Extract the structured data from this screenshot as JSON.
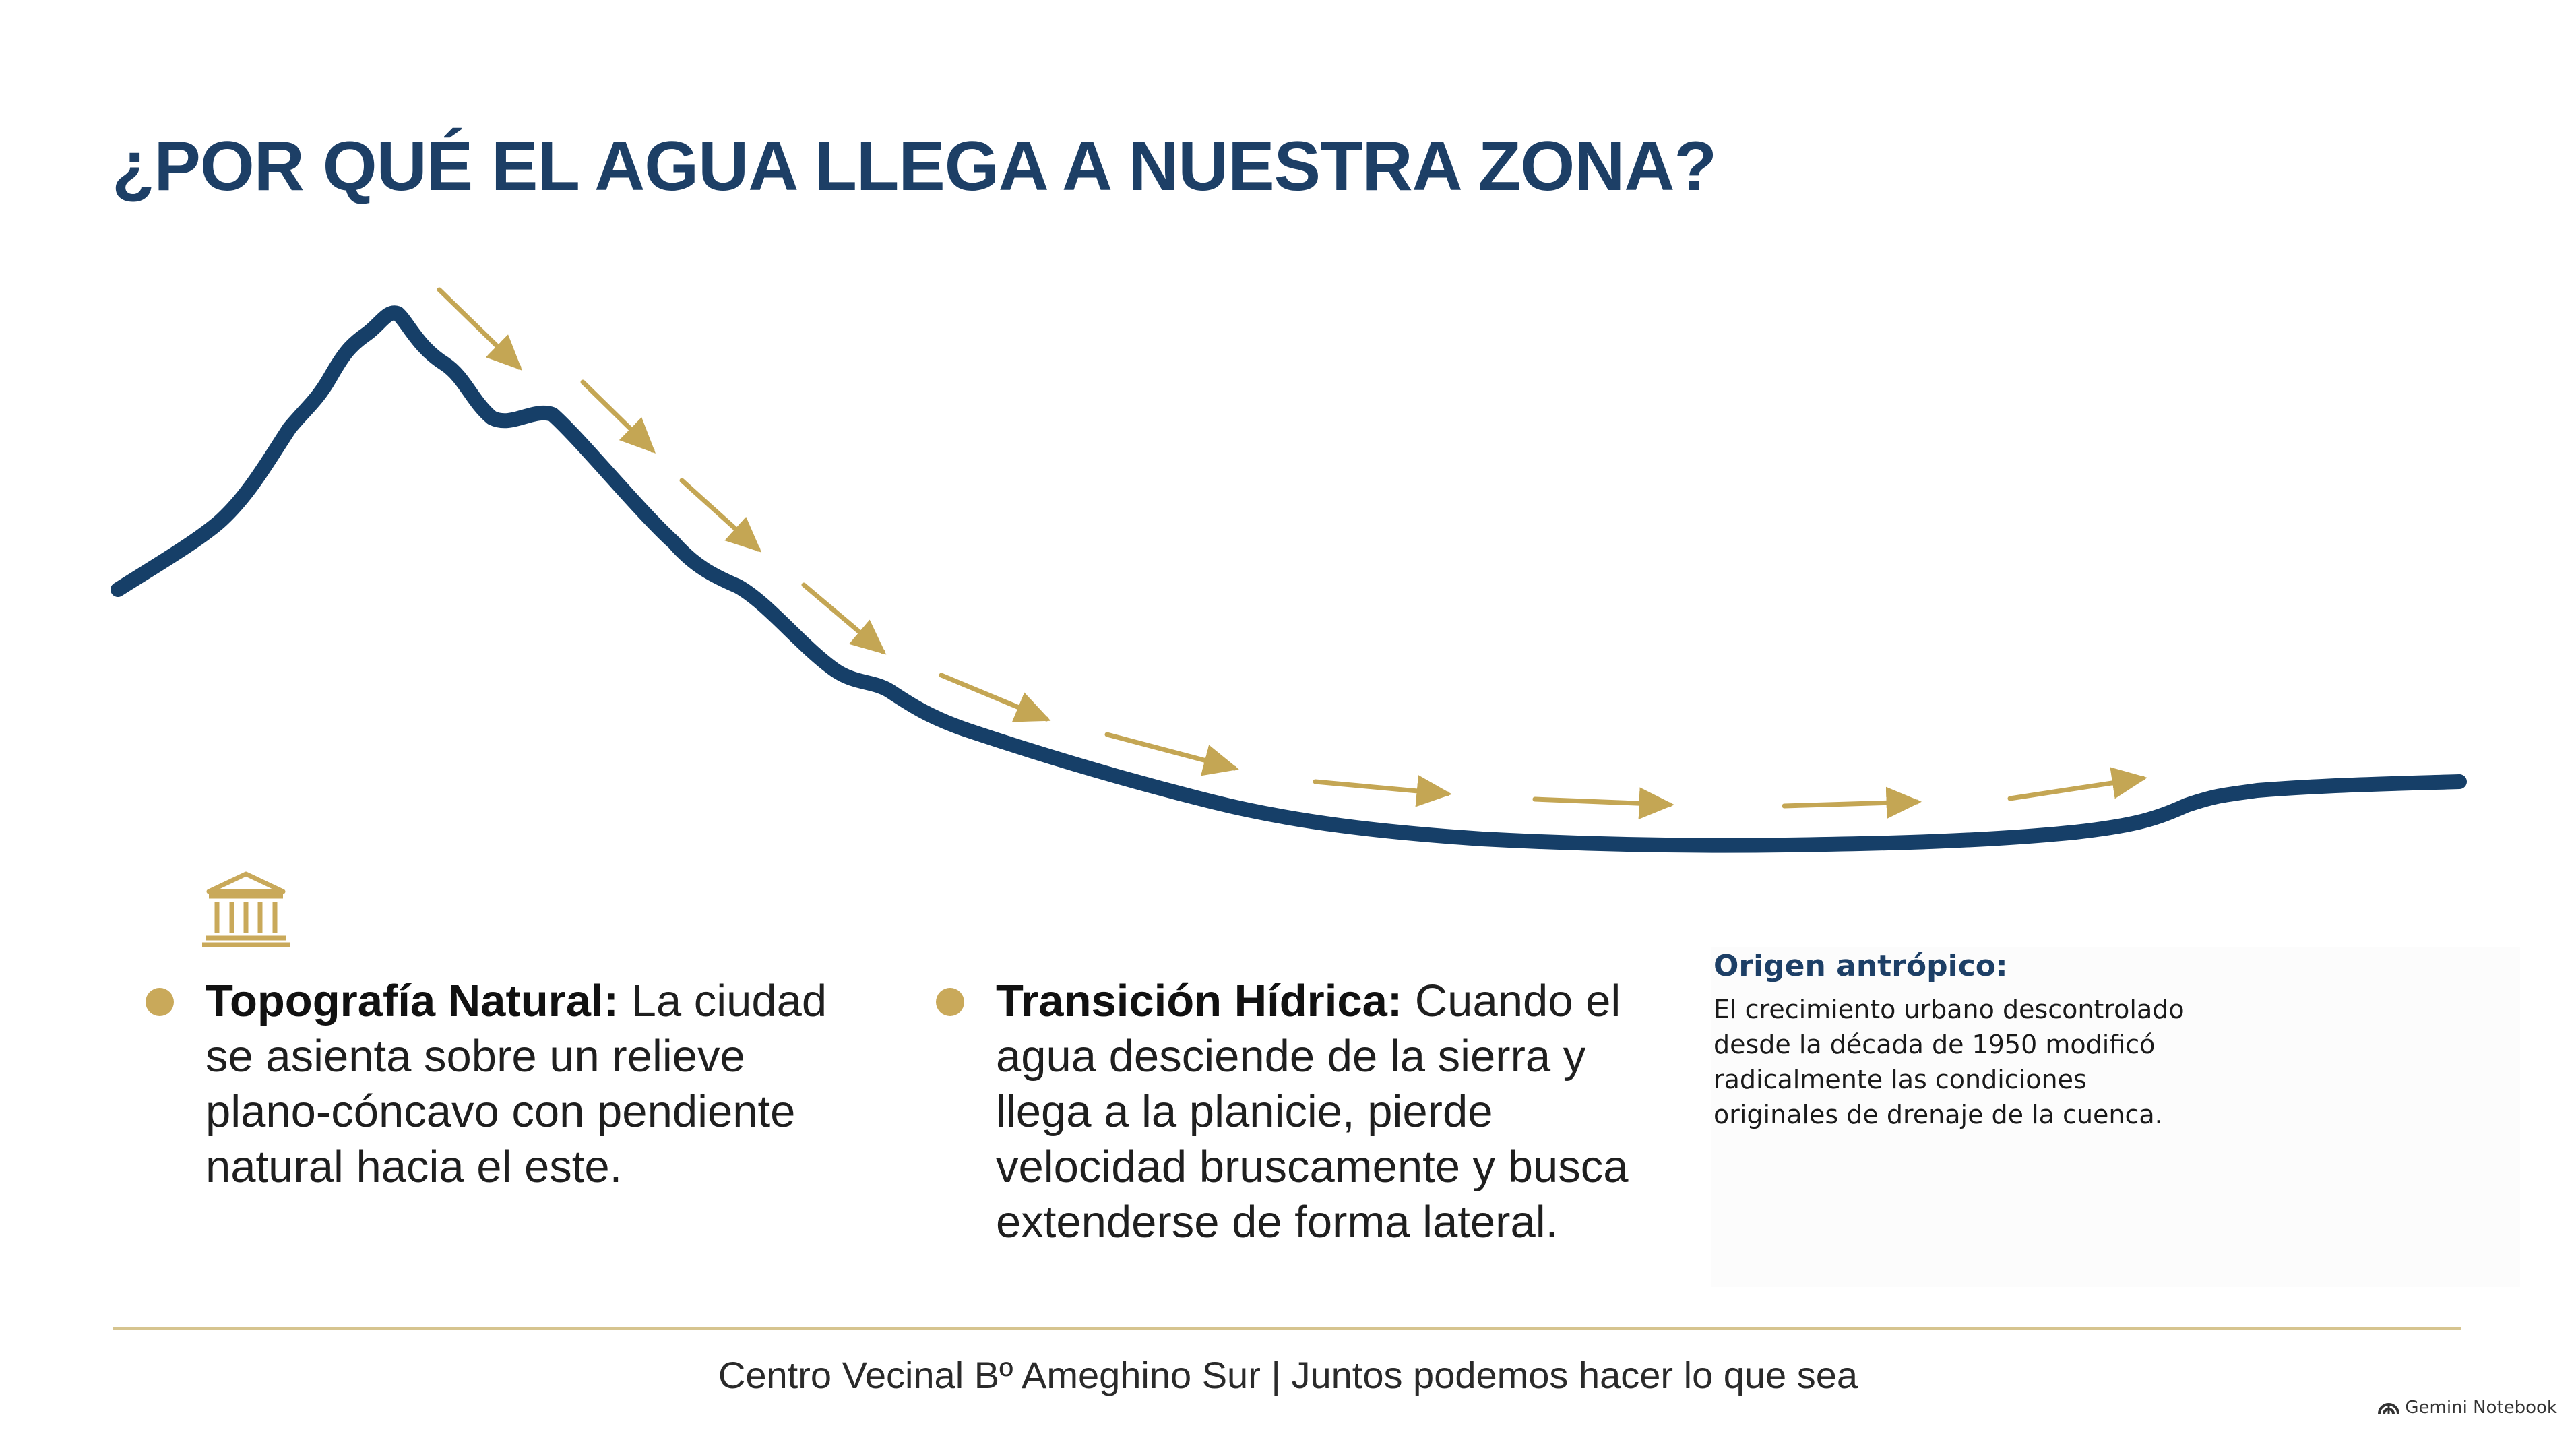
{
  "title": "¿POR QUÉ EL AGUA LLEGA A NUESTRA ZONA?",
  "colors": {
    "terrain_line": "#163f68",
    "arrow": "#c4a654",
    "title": "#1d3f66",
    "bullet": "#c9a95a",
    "rule": "#d6c48f"
  },
  "icons": {
    "institution": "classical-building-icon",
    "watermark": "gemini-spark-icon"
  },
  "bullets": [
    {
      "heading": "Topografía Natural:",
      "lines": [
        "La ciudad",
        "se asienta sobre un relieve",
        "plano-cóncavo con pendiente",
        "natural hacia el este."
      ]
    },
    {
      "heading": "Transición Hídrica:",
      "lines": [
        "Cuando el",
        "agua desciende de la sierra y",
        "llega a la planicie, pierde",
        "velocidad bruscamente y busca",
        "extenderse de forma lateral."
      ]
    }
  ],
  "note": {
    "title": "Origen antrópico:",
    "lines": [
      "El crecimiento urbano descontrolado",
      "desde la década de 1950 modificó",
      "radicalmente las condiciones",
      "originales de drenaje de la cuenca."
    ]
  },
  "footer": "Centro Vecinal Bº Ameghino Sur | Juntos podemos hacer lo que sea",
  "watermark": "Gemini Notebook"
}
